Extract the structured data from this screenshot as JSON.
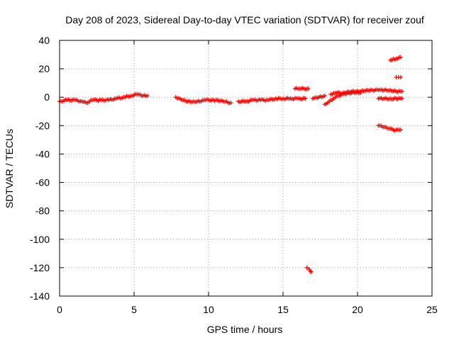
{
  "chart_data": {
    "type": "scatter",
    "title": "Day 208 of 2023, Sidereal Day-to-day VTEC variation (SDTVAR) for receiver zouf",
    "xlabel": "GPS time / hours",
    "ylabel": "SDTVAR / TECUs",
    "xlim": [
      0,
      25
    ],
    "ylim": [
      -140,
      40
    ],
    "xticks": [
      0,
      5,
      10,
      15,
      20,
      25
    ],
    "xtick_labels": [
      "0",
      "5",
      "10",
      "15",
      "20",
      "25"
    ],
    "yticks": [
      40,
      20,
      0,
      -20,
      -40,
      -60,
      -80,
      -100,
      -120,
      -140
    ],
    "ytick_labels": [
      "40",
      "20",
      "0",
      "-20",
      "-40",
      "-60",
      "-80",
      "-100",
      "-120",
      "-140"
    ],
    "grid": true,
    "marker": "+",
    "color": "#ff0000",
    "series": [
      {
        "name": "SDTVAR",
        "segments": [
          {
            "x": [
              0.0,
              0.5,
              1.0,
              1.5,
              1.8,
              2.2,
              2.8,
              3.3,
              3.8,
              4.3,
              4.8,
              5.2,
              5.6,
              5.9
            ],
            "y": [
              -3,
              -2,
              -2,
              -3,
              -4,
              -2,
              -2,
              -2,
              -1,
              0,
              1,
              2,
              1,
              1
            ]
          },
          {
            "x": [
              7.8,
              8.2,
              8.6,
              9.0,
              9.4,
              9.8,
              10.2,
              10.6,
              11.0,
              11.5
            ],
            "y": [
              0,
              -2,
              -3,
              -3,
              -3,
              -2,
              -2,
              -2,
              -3,
              -4
            ]
          },
          {
            "x": [
              12.0,
              12.5,
              13.0,
              13.5,
              14.0,
              14.5,
              15.0,
              15.5,
              16.0,
              16.5
            ],
            "y": [
              -3,
              -3,
              -2,
              -2,
              -2,
              -1,
              -1,
              -1,
              -1,
              -1
            ]
          },
          {
            "x": [
              15.8,
              16.1,
              16.4,
              16.7
            ],
            "y": [
              6,
              6,
              6,
              6
            ]
          },
          {
            "x": [
              16.6,
              16.75,
              16.9
            ],
            "y": [
              -120,
              -121,
              -123
            ]
          },
          {
            "x": [
              17.0,
              17.4,
              17.8
            ],
            "y": [
              -1,
              0,
              1
            ]
          },
          {
            "x": [
              17.8,
              18.1,
              18.4,
              18.7,
              19.0,
              19.4,
              19.8,
              20.2
            ],
            "y": [
              -5,
              -3,
              -1,
              1,
              2,
              3,
              3,
              3
            ]
          },
          {
            "x": [
              18.2,
              18.6,
              19.0,
              19.4,
              19.8,
              20.2,
              20.6,
              21.0,
              21.4,
              21.8,
              22.2,
              22.6,
              23.0
            ],
            "y": [
              2,
              3,
              3,
              4,
              4,
              4,
              5,
              5,
              5,
              5,
              5,
              4,
              4
            ]
          },
          {
            "x": [
              21.4,
              21.8,
              22.2,
              22.6,
              23.0
            ],
            "y": [
              -1,
              -1,
              -1,
              -1,
              -1
            ]
          },
          {
            "x": [
              21.4,
              21.8,
              22.1,
              22.4,
              22.7,
              22.9
            ],
            "y": [
              -20,
              -21,
              -22,
              -23,
              -23,
              -23
            ]
          },
          {
            "x": [
              22.2,
              22.4,
              22.6,
              22.8,
              22.9
            ],
            "y": [
              26,
              27,
              27,
              28,
              28
            ]
          },
          {
            "x": [
              22.6,
              22.75,
              22.9
            ],
            "y": [
              14,
              14,
              14
            ]
          }
        ]
      }
    ]
  }
}
